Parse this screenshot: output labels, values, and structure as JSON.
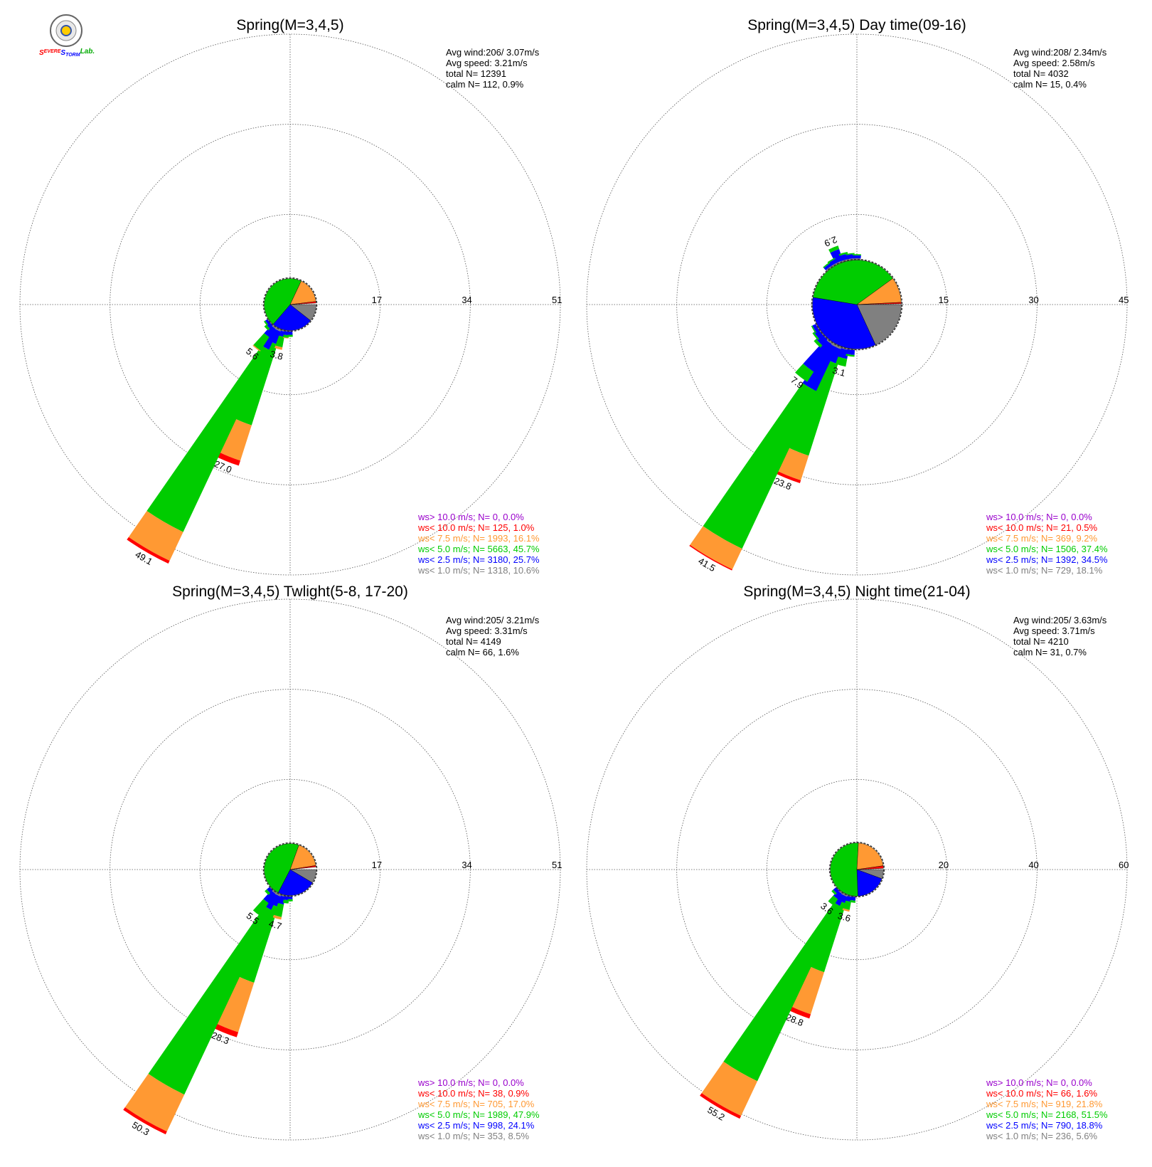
{
  "logo": {
    "parts": [
      {
        "text": "S",
        "color": "#ff0000"
      },
      {
        "text": "EVERE",
        "color": "#ff0000"
      },
      {
        "text": "S",
        "color": "#0000ff"
      },
      {
        "text": "TORM",
        "color": "#0000ff"
      },
      {
        "text": "Lab.",
        "color": "#00aa00"
      }
    ]
  },
  "colors": {
    "gt10": "#9900cc",
    "lt10": "#ff0000",
    "lt7_5": "#ff9933",
    "lt5": "#00cc00",
    "lt2_5": "#0000ff",
    "lt1": "#808080"
  },
  "chart_data": [
    {
      "type": "windrose",
      "title": "Spring(M=3,4,5)",
      "stats": [
        "Avg wind:206/ 3.07m/s",
        "Avg speed: 3.21m/s",
        "total N=       12391",
        "calm N=     112,   0.9%"
      ],
      "rings": [
        17,
        34,
        51
      ],
      "rmax": 51,
      "hub": {
        "radius": 4.9,
        "fractions": [
          0.106,
          0.257,
          0.457,
          0.161,
          0.01,
          0.0
        ]
      },
      "petals": [
        {
          "dir": 202.5,
          "total": 27.0,
          "label": "27.0",
          "parts": [
            0.5,
            2.5,
            16.0,
            7.0,
            1.0,
            0
          ]
        },
        {
          "dir": 210,
          "total": 49.1,
          "label": "49.1",
          "parts": [
            0.5,
            4.0,
            38.0,
            6.0,
            0.6,
            0
          ]
        },
        {
          "dir": 195,
          "total": 3.8,
          "label": "3.8",
          "parts": [
            0.3,
            1.0,
            2.0,
            0.5,
            0,
            0
          ]
        },
        {
          "dir": 217.5,
          "total": 5.6,
          "label": "5.6",
          "parts": [
            0.4,
            2.0,
            3.0,
            0.2,
            0,
            0
          ]
        },
        {
          "dir": 187.5,
          "total": 1.5,
          "parts": [
            0.2,
            0.7,
            0.5,
            0.1,
            0,
            0
          ]
        },
        {
          "dir": 180,
          "total": 1.2,
          "parts": [
            0.2,
            0.6,
            0.4,
            0,
            0,
            0
          ]
        },
        {
          "dir": 225,
          "total": 1.5,
          "parts": [
            0.2,
            0.8,
            0.5,
            0,
            0,
            0
          ]
        },
        {
          "dir": 232.5,
          "total": 1.0,
          "parts": [
            0.2,
            0.5,
            0.3,
            0,
            0,
            0
          ]
        }
      ],
      "legend": [
        {
          "text": "ws> 10.0 m/s; N=     0,  0.0%",
          "key": "gt10"
        },
        {
          "text": "ws< 10.0 m/s; N=   125,  1.0%",
          "key": "lt10"
        },
        {
          "text": "ws<  7.5 m/s; N=  1993, 16.1%",
          "key": "lt7_5"
        },
        {
          "text": "ws<  5.0 m/s; N=  5663, 45.7%",
          "key": "lt5"
        },
        {
          "text": "ws<  2.5 m/s; N=  3180, 25.7%",
          "key": "lt2_5"
        },
        {
          "text": "ws<  1.0 m/s; N=  1318, 10.6%",
          "key": "lt1"
        }
      ]
    },
    {
      "type": "windrose",
      "title": "Spring(M=3,4,5) Day time(09-16)",
      "stats": [
        "Avg wind:208/ 2.34m/s",
        "Avg speed: 2.58m/s",
        "total N=        4032",
        "calm N=      15,   0.4%"
      ],
      "rings": [
        15,
        30,
        45
      ],
      "rmax": 45,
      "hub": {
        "radius": 7.4,
        "fractions": [
          0.181,
          0.345,
          0.374,
          0.092,
          0.005,
          0.0
        ]
      },
      "petals": [
        {
          "dir": 202.5,
          "total": 23.8,
          "label": "23.8",
          "parts": [
            0.5,
            2.5,
            16.0,
            4.3,
            0.5,
            0
          ]
        },
        {
          "dir": 210,
          "total": 41.5,
          "label": "41.5",
          "parts": [
            0.5,
            8.0,
            29.0,
            3.8,
            0.2,
            0
          ]
        },
        {
          "dir": 195,
          "total": 3.1,
          "label": "3.1",
          "parts": [
            0.3,
            1.5,
            1.3,
            0,
            0,
            0
          ]
        },
        {
          "dir": 217.5,
          "total": 7.9,
          "label": "7.9",
          "parts": [
            0.4,
            5.5,
            2.0,
            0,
            0,
            0
          ]
        },
        {
          "dir": 337.5,
          "total": 2.9,
          "label": "2.9",
          "parts": [
            0.3,
            2.0,
            0.6,
            0,
            0,
            0
          ]
        },
        {
          "dir": 345,
          "total": 1.5,
          "parts": [
            0.3,
            0.9,
            0.3,
            0,
            0,
            0
          ]
        },
        {
          "dir": 352.5,
          "total": 1.2,
          "parts": [
            0.3,
            0.7,
            0.2,
            0,
            0,
            0
          ]
        },
        {
          "dir": 0,
          "total": 1.0,
          "parts": [
            0.3,
            0.5,
            0.2,
            0,
            0,
            0
          ]
        },
        {
          "dir": 330,
          "total": 1.2,
          "parts": [
            0.3,
            0.7,
            0.2,
            0,
            0,
            0
          ]
        },
        {
          "dir": 322.5,
          "total": 1.0,
          "parts": [
            0.3,
            0.5,
            0.2,
            0,
            0,
            0
          ]
        },
        {
          "dir": 187.5,
          "total": 1.3,
          "parts": [
            0.2,
            0.8,
            0.3,
            0,
            0,
            0
          ]
        },
        {
          "dir": 225,
          "total": 2.0,
          "parts": [
            0.2,
            1.3,
            0.5,
            0,
            0,
            0
          ]
        },
        {
          "dir": 232.5,
          "total": 1.4,
          "parts": [
            0.2,
            0.9,
            0.3,
            0,
            0,
            0
          ]
        },
        {
          "dir": 240,
          "total": 1.0,
          "parts": [
            0.2,
            0.6,
            0.2,
            0,
            0,
            0
          ]
        }
      ],
      "legend": [
        {
          "text": "ws> 10.0 m/s; N=     0,  0.0%",
          "key": "gt10"
        },
        {
          "text": "ws< 10.0 m/s; N=    21,  0.5%",
          "key": "lt10"
        },
        {
          "text": "ws<  7.5 m/s; N=   369,  9.2%",
          "key": "lt7_5"
        },
        {
          "text": "ws<  5.0 m/s; N=  1506, 37.4%",
          "key": "lt5"
        },
        {
          "text": "ws<  2.5 m/s; N=  1392, 34.5%",
          "key": "lt2_5"
        },
        {
          "text": "ws<  1.0 m/s; N=   729, 18.1%",
          "key": "lt1"
        }
      ]
    },
    {
      "type": "windrose",
      "title": "Spring(M=3,4,5) Twlight(5-8, 17-20)",
      "stats": [
        "Avg wind:205/ 3.21m/s",
        "Avg speed: 3.31m/s",
        "total N=        4149",
        "calm N=      66,   1.6%"
      ],
      "rings": [
        17,
        34,
        51
      ],
      "rmax": 51,
      "hub": {
        "radius": 4.9,
        "fractions": [
          0.085,
          0.241,
          0.479,
          0.17,
          0.009,
          0.0
        ]
      },
      "petals": [
        {
          "dir": 202.5,
          "total": 28.3,
          "label": "28.3",
          "parts": [
            0.5,
            2.0,
            15.0,
            9.8,
            1.0,
            0
          ]
        },
        {
          "dir": 210,
          "total": 50.3,
          "label": "50.3",
          "parts": [
            0.5,
            3.0,
            38.5,
            7.7,
            0.6,
            0
          ]
        },
        {
          "dir": 195,
          "total": 4.7,
          "label": "4.7",
          "parts": [
            0.3,
            1.5,
            2.4,
            0.5,
            0,
            0
          ]
        },
        {
          "dir": 217.5,
          "total": 5.5,
          "label": "5.5",
          "parts": [
            0.4,
            2.2,
            2.9,
            0,
            0,
            0
          ]
        },
        {
          "dir": 187.5,
          "total": 1.5,
          "parts": [
            0.2,
            0.7,
            0.6,
            0,
            0,
            0
          ]
        },
        {
          "dir": 180,
          "total": 1.1,
          "parts": [
            0.2,
            0.5,
            0.4,
            0,
            0,
            0
          ]
        },
        {
          "dir": 225,
          "total": 1.4,
          "parts": [
            0.2,
            0.7,
            0.5,
            0,
            0,
            0
          ]
        }
      ],
      "legend": [
        {
          "text": "ws> 10.0 m/s; N=     0,  0.0%",
          "key": "gt10"
        },
        {
          "text": "ws< 10.0 m/s; N=    38,  0.9%",
          "key": "lt10"
        },
        {
          "text": "ws<  7.5 m/s; N=   705, 17.0%",
          "key": "lt7_5"
        },
        {
          "text": "ws<  5.0 m/s; N=  1989, 47.9%",
          "key": "lt5"
        },
        {
          "text": "ws<  2.5 m/s; N=   998, 24.1%",
          "key": "lt2_5"
        },
        {
          "text": "ws<  1.0 m/s; N=   353,  8.5%",
          "key": "lt1"
        }
      ]
    },
    {
      "type": "windrose",
      "title": "Spring(M=3,4,5) Night time(21-04)",
      "stats": [
        "Avg wind:205/ 3.63m/s",
        "Avg speed: 3.71m/s",
        "total N=        4210",
        "calm N=      31,   0.7%"
      ],
      "rings": [
        20,
        40,
        60
      ],
      "rmax": 60,
      "hub": {
        "radius": 5.9,
        "fractions": [
          0.056,
          0.188,
          0.515,
          0.218,
          0.016,
          0.0
        ]
      },
      "petals": [
        {
          "dir": 202.5,
          "total": 28.8,
          "label": "28.8",
          "parts": [
            0.5,
            1.5,
            16.0,
            9.8,
            1.0,
            0
          ]
        },
        {
          "dir": 210,
          "total": 55.2,
          "label": "55.2",
          "parts": [
            0.5,
            2.5,
            43.0,
            8.5,
            0.7,
            0
          ]
        },
        {
          "dir": 195,
          "total": 3.6,
          "label": "3.6",
          "parts": [
            0.3,
            1.1,
            1.8,
            0.4,
            0,
            0
          ]
        },
        {
          "dir": 217.5,
          "total": 3.6,
          "label": "3.6",
          "parts": [
            0.4,
            1.5,
            1.7,
            0,
            0,
            0
          ]
        },
        {
          "dir": 187.5,
          "total": 1.5,
          "parts": [
            0.2,
            0.8,
            0.5,
            0,
            0,
            0
          ]
        },
        {
          "dir": 225,
          "total": 1.5,
          "parts": [
            0.2,
            0.8,
            0.5,
            0,
            0,
            0
          ]
        }
      ],
      "legend": [
        {
          "text": "ws> 10.0 m/s; N=     0,  0.0%",
          "key": "gt10"
        },
        {
          "text": "ws< 10.0 m/s; N=    66,  1.6%",
          "key": "lt10"
        },
        {
          "text": "ws<  7.5 m/s; N=   919, 21.8%",
          "key": "lt7_5"
        },
        {
          "text": "ws<  5.0 m/s; N=  2168, 51.5%",
          "key": "lt5"
        },
        {
          "text": "ws<  2.5 m/s; N=   790, 18.8%",
          "key": "lt2_5"
        },
        {
          "text": "ws<  1.0 m/s; N=   236,  5.6%",
          "key": "lt1"
        }
      ]
    }
  ]
}
